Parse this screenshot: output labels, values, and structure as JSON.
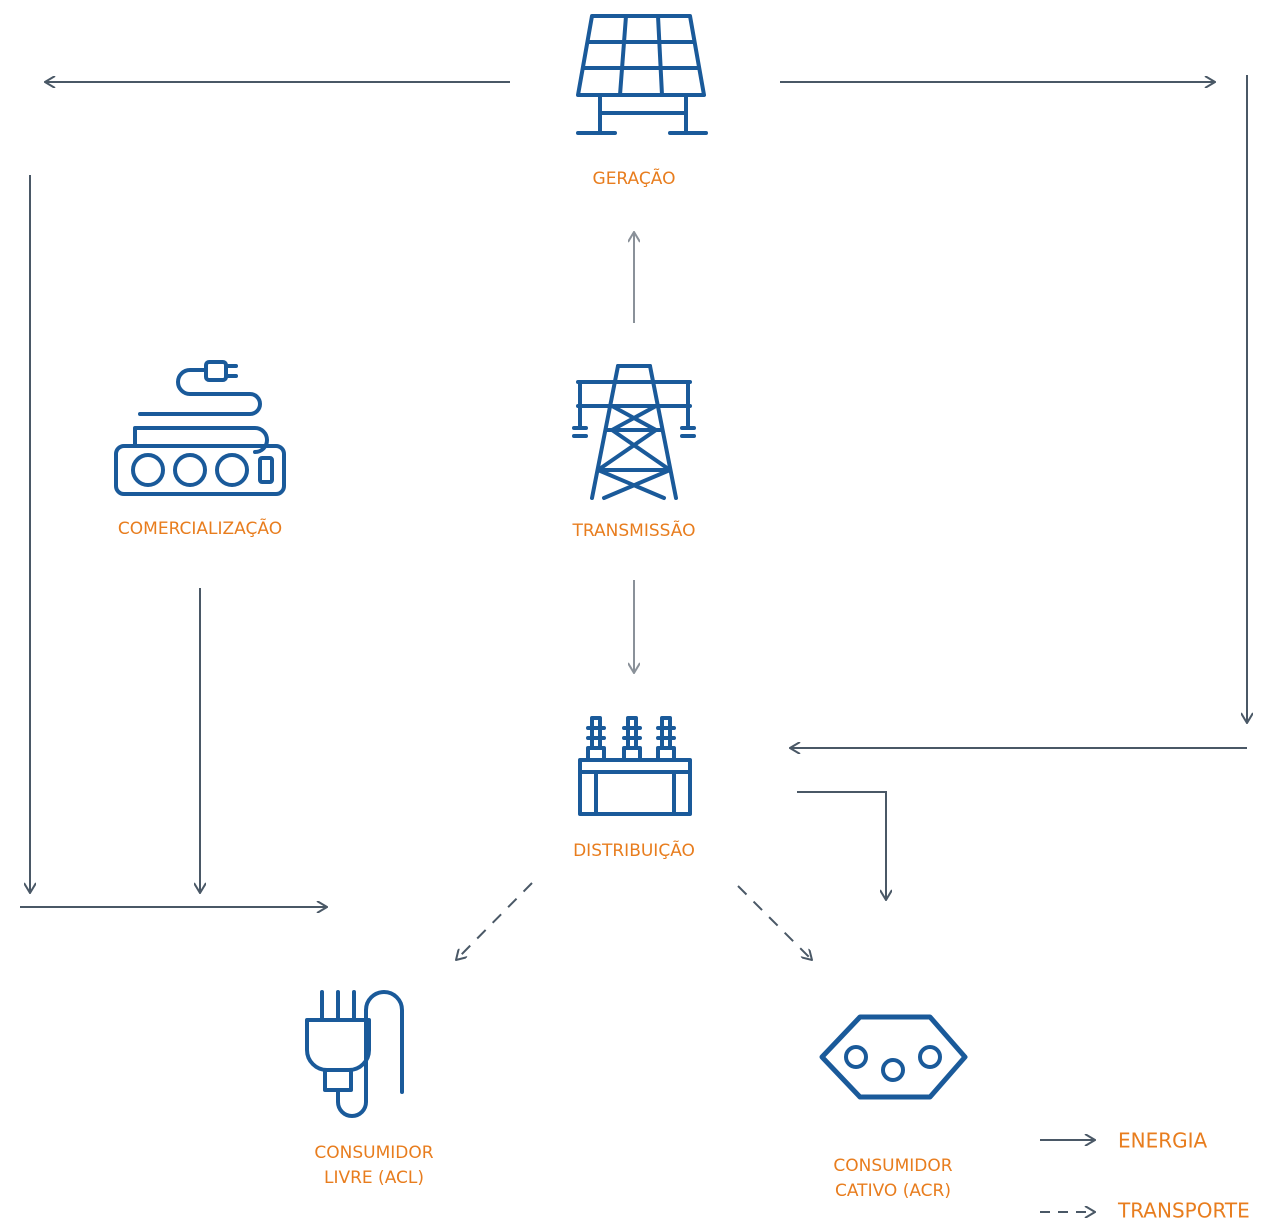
{
  "nodes": [
    {
      "label": [
        "GERAÇÃO"
      ]
    },
    {
      "label": [
        "COMERCIALIZAÇÃO"
      ]
    },
    {
      "label": [
        "TRANSMISSÃO"
      ]
    },
    {
      "label": [
        "DISTRIBUIÇÃO"
      ]
    },
    {
      "label": [
        "CONSUMIDOR",
        "LIVRE (ACL)"
      ]
    },
    {
      "label": [
        "CONSUMIDOR",
        "CATIVO (ACR)"
      ]
    }
  ],
  "legend": [
    {
      "label": "ENERGIA"
    },
    {
      "label": "TRANSPORTE"
    }
  ]
}
